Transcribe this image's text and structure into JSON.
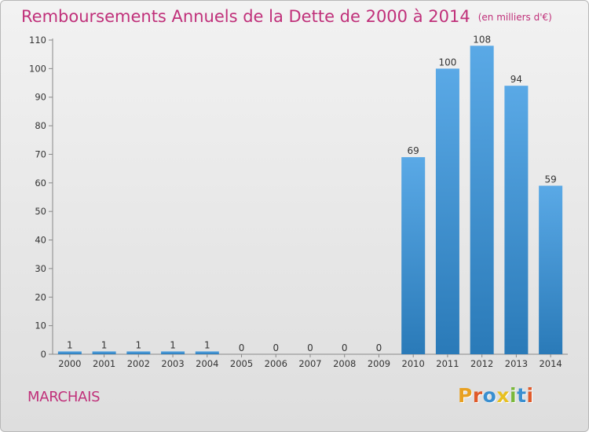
{
  "header": {
    "title": "Remboursements Annuels de la Dette de 2000 à 2014",
    "unit": "(en milliers d'€)"
  },
  "footer": {
    "commune": "MARCHAIS",
    "logo_text": "Proxiti",
    "logo_colors": [
      "#e8a020",
      "#e05a2a",
      "#3a8fd0",
      "#e8c020",
      "#7ab83a",
      "#3a8fd0",
      "#e05a2a"
    ]
  },
  "colors": {
    "title": "#c0307a",
    "bar_top": "#5aa9e6",
    "bar_bottom": "#2a7ab8"
  },
  "chart_data": {
    "type": "bar",
    "categories": [
      "2000",
      "2001",
      "2002",
      "2003",
      "2004",
      "2005",
      "2006",
      "2007",
      "2008",
      "2009",
      "2010",
      "2011",
      "2012",
      "2013",
      "2014"
    ],
    "values": [
      1,
      1,
      1,
      1,
      1,
      0,
      0,
      0,
      0,
      0,
      69,
      100,
      108,
      94,
      59
    ],
    "ylim": [
      0,
      110
    ],
    "yticks": [
      0,
      10,
      20,
      30,
      40,
      50,
      60,
      70,
      80,
      90,
      100,
      110
    ],
    "grid": false,
    "legend": "none"
  }
}
